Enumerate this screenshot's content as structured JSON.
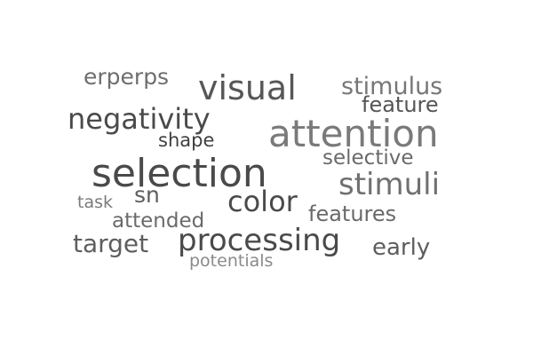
{
  "words": {
    "erperps": "erperps",
    "visual": "visual",
    "stimulus": "stimulus",
    "feature": "feature",
    "negativity": "negativity",
    "attention": "attention",
    "shape": "shape",
    "selective": "selective",
    "selection": "selection",
    "stimuli": "stimuli",
    "sn": "sn",
    "color": "color",
    "task": "task",
    "features": "features",
    "attended": "attended",
    "target": "target",
    "processing": "processing",
    "early": "early",
    "potentials": "potentials"
  },
  "colors": {
    "background": "#ffffff",
    "text_dark": "#4a4a4a",
    "text_mid": "#6a6a6a",
    "text_light": "#8a8a8a"
  }
}
